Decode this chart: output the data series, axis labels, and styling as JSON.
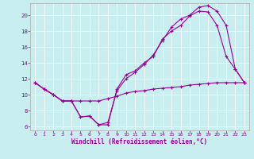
{
  "xlabel": "Windchill (Refroidissement éolien,°C)",
  "xlim": [
    -0.5,
    23.5
  ],
  "ylim": [
    5.5,
    21.5
  ],
  "xticks": [
    0,
    1,
    2,
    3,
    4,
    5,
    6,
    7,
    8,
    9,
    10,
    11,
    12,
    13,
    14,
    15,
    16,
    17,
    18,
    19,
    20,
    21,
    22,
    23
  ],
  "yticks": [
    6,
    8,
    10,
    12,
    14,
    16,
    18,
    20
  ],
  "bg_color": "#c8eef0",
  "line_color": "#990099",
  "line1_x": [
    0,
    1,
    2,
    3,
    4,
    5,
    6,
    7,
    8,
    9,
    10,
    11,
    12,
    13,
    14,
    15,
    16,
    17,
    18,
    19,
    20,
    21,
    22,
    23
  ],
  "line1_y": [
    11.5,
    10.7,
    10.0,
    9.2,
    9.2,
    7.2,
    7.3,
    6.2,
    6.2,
    10.7,
    12.5,
    13.0,
    14.0,
    14.8,
    17.0,
    18.0,
    18.7,
    19.9,
    20.5,
    20.4,
    18.7,
    14.8,
    13.2,
    11.5
  ],
  "line2_x": [
    0,
    1,
    2,
    3,
    4,
    5,
    6,
    7,
    8,
    9,
    10,
    11,
    12,
    13,
    14,
    15,
    16,
    17,
    18,
    19,
    20,
    21,
    22,
    23
  ],
  "line2_y": [
    11.5,
    10.7,
    10.0,
    9.2,
    9.2,
    7.2,
    7.3,
    6.2,
    6.5,
    10.5,
    12.0,
    12.8,
    13.8,
    15.0,
    16.8,
    18.5,
    19.5,
    20.0,
    21.0,
    21.2,
    20.5,
    18.7,
    13.2,
    11.5
  ],
  "line3_x": [
    0,
    1,
    2,
    3,
    4,
    5,
    6,
    7,
    8,
    9,
    10,
    11,
    12,
    13,
    14,
    15,
    16,
    17,
    18,
    19,
    20,
    21,
    22,
    23
  ],
  "line3_y": [
    11.5,
    10.7,
    10.0,
    9.2,
    9.2,
    9.2,
    9.2,
    9.2,
    9.5,
    9.8,
    10.2,
    10.4,
    10.5,
    10.7,
    10.8,
    10.9,
    11.0,
    11.2,
    11.3,
    11.4,
    11.5,
    11.5,
    11.5,
    11.5
  ]
}
